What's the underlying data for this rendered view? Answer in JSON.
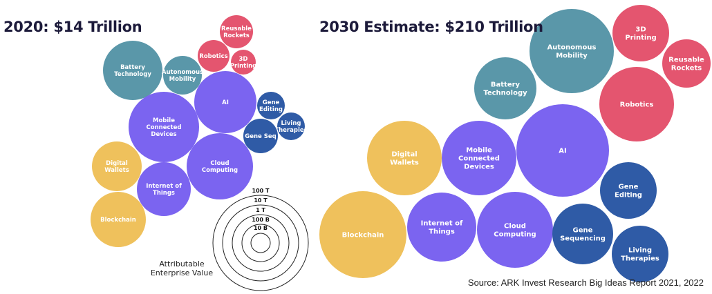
{
  "chart_data": [
    {
      "type": "bubble",
      "title": "2020: $14 Trillion",
      "bubbles": [
        {
          "label": [
            "Battery",
            "Technology"
          ],
          "group": "energy"
        },
        {
          "label": [
            "Autonomous",
            "Mobility"
          ],
          "group": "energy"
        },
        {
          "label": [
            "Reusable",
            "Rockets"
          ],
          "group": "robotics"
        },
        {
          "label": [
            "Robotics"
          ],
          "group": "robotics"
        },
        {
          "label": [
            "3D",
            "Printing"
          ],
          "group": "robotics"
        },
        {
          "label": [
            "AI"
          ],
          "group": "ai"
        },
        {
          "label": [
            "Gene",
            "Editing"
          ],
          "group": "genomics"
        },
        {
          "label": [
            "Living",
            "Therapies"
          ],
          "group": "genomics"
        },
        {
          "label": [
            "Gene Seq"
          ],
          "group": "genomics"
        },
        {
          "label": [
            "Mobile",
            "Connected",
            "Devices"
          ],
          "group": "ai"
        },
        {
          "label": [
            "Cloud",
            "Computing"
          ],
          "group": "ai"
        },
        {
          "label": [
            "Digital",
            "Wallets"
          ],
          "group": "fintech"
        },
        {
          "label": [
            "Internet of",
            "Things"
          ],
          "group": "ai"
        },
        {
          "label": [
            "Blockchain"
          ],
          "group": "fintech"
        }
      ],
      "size_legend": {
        "levels": [
          "100 T",
          "10 T",
          "1 T",
          "100 B",
          "10 B"
        ],
        "caption": [
          "Attributable",
          "Enterprise Value"
        ]
      }
    },
    {
      "type": "bubble",
      "title": "2030 Estimate: $210 Trillion",
      "bubbles": [
        {
          "label": [
            "Autonomous",
            "Mobility"
          ],
          "group": "energy"
        },
        {
          "label": [
            "3D",
            "Printing"
          ],
          "group": "robotics"
        },
        {
          "label": [
            "Reusable",
            "Rockets"
          ],
          "group": "robotics"
        },
        {
          "label": [
            "Robotics"
          ],
          "group": "robotics"
        },
        {
          "label": [
            "Battery",
            "Technology"
          ],
          "group": "energy"
        },
        {
          "label": [
            "AI"
          ],
          "group": "ai"
        },
        {
          "label": [
            "Mobile",
            "Connected",
            "Devices"
          ],
          "group": "ai"
        },
        {
          "label": [
            "Digital",
            "Wallets"
          ],
          "group": "fintech"
        },
        {
          "label": [
            "Blockchain"
          ],
          "group": "fintech"
        },
        {
          "label": [
            "Internet of",
            "Things"
          ],
          "group": "ai"
        },
        {
          "label": [
            "Cloud",
            "Computing"
          ],
          "group": "ai"
        },
        {
          "label": [
            "Gene",
            "Sequencing"
          ],
          "group": "genomics"
        },
        {
          "label": [
            "Gene",
            "Editing"
          ],
          "group": "genomics"
        },
        {
          "label": [
            "Living",
            "Therapies"
          ],
          "group": "genomics"
        }
      ]
    }
  ],
  "colors": {
    "energy": "#5a97a9",
    "robotics": "#e4556f",
    "ai": "#7b64f0",
    "genomics": "#2f5ba6",
    "fintech": "#efc15c"
  },
  "source": "Source: ARK Invest Research Big Ideas Report 2021, 2022"
}
